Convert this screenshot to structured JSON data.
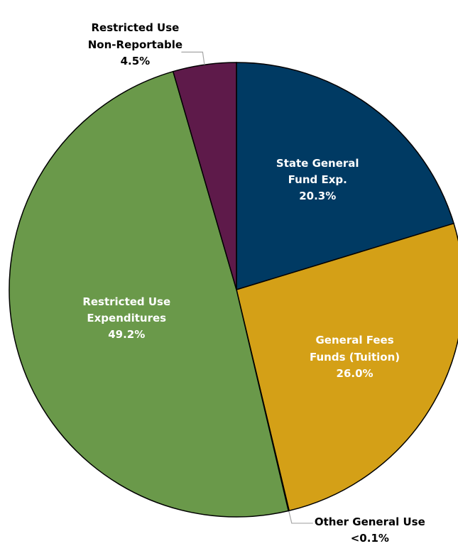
{
  "chart_data": {
    "type": "pie",
    "categories": [
      "State General Fund Exp.",
      "General Fees Funds (Tuition)",
      "Other General Use",
      "Restricted Use Expenditures",
      "Restricted Use Non-Reportable"
    ],
    "values": [
      20.3,
      26.0,
      0.05,
      49.2,
      4.5
    ],
    "value_labels": [
      "20.3%",
      "26.0%",
      "<0.1%",
      "49.2%",
      "4.5%"
    ],
    "colors": [
      "#003a63",
      "#d4a017",
      "#8a8a8a",
      "#6a994a",
      "#5e1a4a"
    ]
  }
}
